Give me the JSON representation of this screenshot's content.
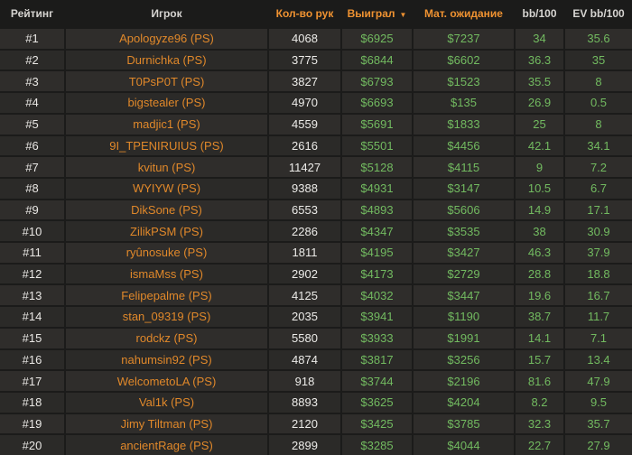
{
  "table": {
    "sort_indicator": "▼",
    "columns": [
      {
        "id": "rank",
        "label": "Рейтинг",
        "accent": false
      },
      {
        "id": "player",
        "label": "Игрок",
        "accent": false
      },
      {
        "id": "hands",
        "label": "Кол-во рук",
        "accent": true
      },
      {
        "id": "won",
        "label": "Выиграл",
        "accent": true,
        "sorted": "desc"
      },
      {
        "id": "ev_money",
        "label": "Мат. ожидание",
        "accent": true
      },
      {
        "id": "bb100",
        "label": "bb/100",
        "accent": false
      },
      {
        "id": "ev_bb100",
        "label": "EV bb/100",
        "accent": false
      }
    ],
    "rows": [
      {
        "rank": "#1",
        "player": "Apologyze96 (PS)",
        "hands": "4068",
        "won": "$6925",
        "ev_money": "$7237",
        "bb100": "34",
        "ev_bb100": "35.6"
      },
      {
        "rank": "#2",
        "player": "Durnichka (PS)",
        "hands": "3775",
        "won": "$6844",
        "ev_money": "$6602",
        "bb100": "36.3",
        "ev_bb100": "35"
      },
      {
        "rank": "#3",
        "player": "T0PsP0T (PS)",
        "hands": "3827",
        "won": "$6793",
        "ev_money": "$1523",
        "bb100": "35.5",
        "ev_bb100": "8"
      },
      {
        "rank": "#4",
        "player": "bigstealer (PS)",
        "hands": "4970",
        "won": "$6693",
        "ev_money": "$135",
        "bb100": "26.9",
        "ev_bb100": "0.5"
      },
      {
        "rank": "#5",
        "player": "madjic1 (PS)",
        "hands": "4559",
        "won": "$5691",
        "ev_money": "$1833",
        "bb100": "25",
        "ev_bb100": "8"
      },
      {
        "rank": "#6",
        "player": "9I_TPENIRUIUS (PS)",
        "hands": "2616",
        "won": "$5501",
        "ev_money": "$4456",
        "bb100": "42.1",
        "ev_bb100": "34.1"
      },
      {
        "rank": "#7",
        "player": "kvitun (PS)",
        "hands": "11427",
        "won": "$5128",
        "ev_money": "$4115",
        "bb100": "9",
        "ev_bb100": "7.2"
      },
      {
        "rank": "#8",
        "player": "WYIYW (PS)",
        "hands": "9388",
        "won": "$4931",
        "ev_money": "$3147",
        "bb100": "10.5",
        "ev_bb100": "6.7"
      },
      {
        "rank": "#9",
        "player": "DikSone (PS)",
        "hands": "6553",
        "won": "$4893",
        "ev_money": "$5606",
        "bb100": "14.9",
        "ev_bb100": "17.1"
      },
      {
        "rank": "#10",
        "player": "ZilikPSM (PS)",
        "hands": "2286",
        "won": "$4347",
        "ev_money": "$3535",
        "bb100": "38",
        "ev_bb100": "30.9"
      },
      {
        "rank": "#11",
        "player": "ryûnosuke (PS)",
        "hands": "1811",
        "won": "$4195",
        "ev_money": "$3427",
        "bb100": "46.3",
        "ev_bb100": "37.9"
      },
      {
        "rank": "#12",
        "player": "ismaMss (PS)",
        "hands": "2902",
        "won": "$4173",
        "ev_money": "$2729",
        "bb100": "28.8",
        "ev_bb100": "18.8"
      },
      {
        "rank": "#13",
        "player": "Felipepalme (PS)",
        "hands": "4125",
        "won": "$4032",
        "ev_money": "$3447",
        "bb100": "19.6",
        "ev_bb100": "16.7"
      },
      {
        "rank": "#14",
        "player": "stan_09319 (PS)",
        "hands": "2035",
        "won": "$3941",
        "ev_money": "$1190",
        "bb100": "38.7",
        "ev_bb100": "11.7"
      },
      {
        "rank": "#15",
        "player": "rodckz (PS)",
        "hands": "5580",
        "won": "$3933",
        "ev_money": "$1991",
        "bb100": "14.1",
        "ev_bb100": "7.1"
      },
      {
        "rank": "#16",
        "player": "nahumsin92 (PS)",
        "hands": "4874",
        "won": "$3817",
        "ev_money": "$3256",
        "bb100": "15.7",
        "ev_bb100": "13.4"
      },
      {
        "rank": "#17",
        "player": "WelcometoLA (PS)",
        "hands": "918",
        "won": "$3744",
        "ev_money": "$2196",
        "bb100": "81.6",
        "ev_bb100": "47.9"
      },
      {
        "rank": "#18",
        "player": "Val1k (PS)",
        "hands": "8893",
        "won": "$3625",
        "ev_money": "$4204",
        "bb100": "8.2",
        "ev_bb100": "9.5"
      },
      {
        "rank": "#19",
        "player": "Jimy Tiltman (PS)",
        "hands": "2120",
        "won": "$3425",
        "ev_money": "$3785",
        "bb100": "32.3",
        "ev_bb100": "35.7"
      },
      {
        "rank": "#20",
        "player": "ancientRage (PS)",
        "hands": "2899",
        "won": "$3285",
        "ev_money": "$4044",
        "bb100": "22.7",
        "ev_bb100": "27.9"
      }
    ]
  },
  "colors": {
    "header_bg": "#1b1b1a",
    "row_bg_odd": "#2f2d2b",
    "row_bg_even": "#2b2a28",
    "accent_orange": "#ef9231",
    "player_orange": "#e0882a",
    "value_green": "#72ba60",
    "text_white": "#e9e7e4"
  }
}
